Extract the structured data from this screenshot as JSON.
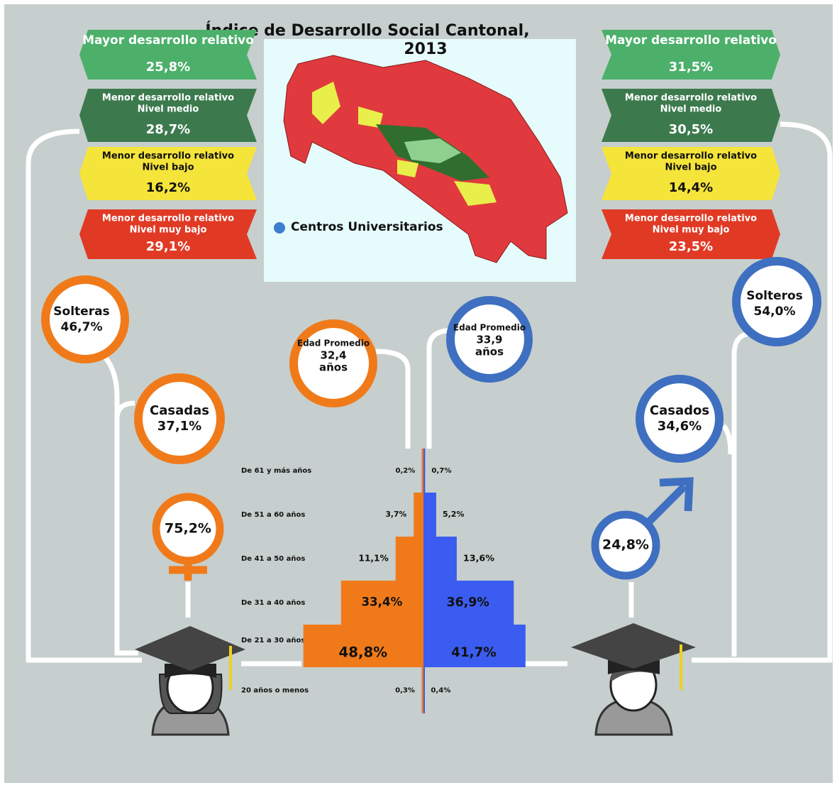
{
  "title": [
    "Índice de Desarrollo Social Cantonal,",
    "2013"
  ],
  "map_legend": "Centros Universitarios",
  "women": {
    "levels": [
      {
        "lines": [
          "Mayor desarrollo relativo"
        ],
        "value": "25,8%",
        "color": "#4caf6a"
      },
      {
        "lines": [
          "Menor desarrollo relativo",
          "Nivel medio"
        ],
        "value": "28,7%",
        "color": "#3c7a4e"
      },
      {
        "lines": [
          "Menor desarrollo relativo",
          "Nivel bajo"
        ],
        "value": "16,2%",
        "color": "#f5e43a"
      },
      {
        "lines": [
          "Menor desarrollo relativo",
          "Nivel muy bajo"
        ],
        "value": "29,1%",
        "color": "#e03a25"
      }
    ],
    "single": {
      "label": "Solteras",
      "value": "46,7%"
    },
    "married": {
      "label": "Casadas",
      "value": "37,1%"
    },
    "age": [
      "Edad Promedio",
      "32,4",
      "años"
    ],
    "share": "75,2%"
  },
  "men": {
    "levels": [
      {
        "lines": [
          "Mayor desarrollo relativo"
        ],
        "value": "31,5%",
        "color": "#4caf6a"
      },
      {
        "lines": [
          "Menor desarrollo relativo",
          "Nivel medio"
        ],
        "value": "30,5%",
        "color": "#3c7a4e"
      },
      {
        "lines": [
          "Menor desarrollo relativo",
          "Nivel bajo"
        ],
        "value": "14,4%",
        "color": "#f5e43a"
      },
      {
        "lines": [
          "Menor desarrollo relativo",
          "Nivel muy bajo"
        ],
        "value": "23,5%",
        "color": "#e03a25"
      }
    ],
    "single": {
      "label": "Solteros",
      "value": "54,0%"
    },
    "married": {
      "label": "Casados",
      "value": "34,6%"
    },
    "age": [
      "Edad Promedio",
      "33,9",
      "años"
    ],
    "share": "24,8%"
  },
  "pyramid": {
    "categories": [
      "De 61 y más años",
      "De 51 a 60 años",
      "De 41 a 50 años",
      "De 31 a 40 años",
      "De 21 a 30 años",
      "20 años o menos"
    ],
    "women": {
      "color": "#f07a1a",
      "values": [
        0.2,
        3.7,
        11.1,
        33.4,
        48.8,
        0.3
      ],
      "value_labels": [
        "0,2%",
        "3,7%",
        "11,1%",
        "33,4%",
        "48,8%",
        "0,3%"
      ]
    },
    "men": {
      "color": "#3b5cf0",
      "values": [
        0.7,
        5.2,
        13.6,
        36.9,
        41.7,
        0.4
      ],
      "value_labels": [
        "0,7%",
        "5,2%",
        "13,6%",
        "36,9%",
        "41,7%",
        "0,4%"
      ]
    }
  }
}
